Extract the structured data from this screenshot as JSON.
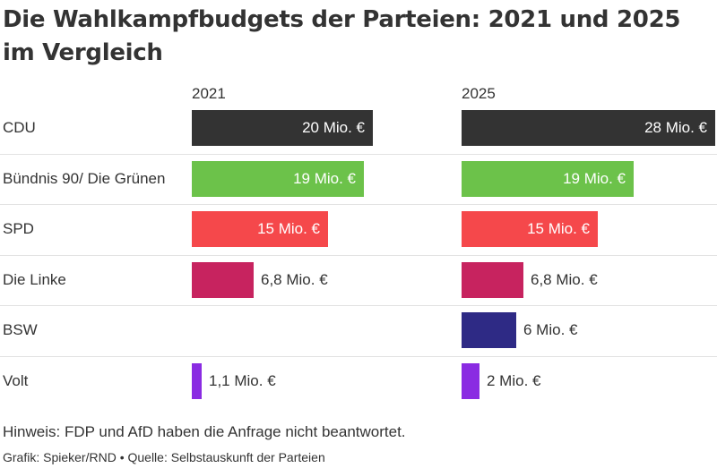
{
  "header": {
    "title": "Die Wahlkampfbudgets der Parteien: 2021 und 2025 im Vergleich"
  },
  "footer": {
    "note": "Hinweis: FDP und AfD haben die Anfrage nicht beantwortet.",
    "source": "Grafik: Spieker/RND • Quelle: Selbstauskunft der Parteien"
  },
  "chart_data": {
    "type": "bar",
    "orientation": "horizontal",
    "unit": "Mio. €",
    "title": "Die Wahlkampfbudgets der Parteien: 2021 und 2025 im Vergleich",
    "categories": [
      "CDU",
      "Bündnis 90/ Die Grünen",
      "SPD",
      "Die Linke",
      "BSW",
      "Volt"
    ],
    "colors": [
      "#333333",
      "#6cc24a",
      "#f5484b",
      "#c7235f",
      "#2e2a85",
      "#8a2be2"
    ],
    "series": [
      {
        "name": "2021",
        "values": [
          20,
          19,
          15,
          6.8,
          null,
          1.1
        ],
        "labels": [
          "20 Mio. €",
          "19 Mio. €",
          "15 Mio. €",
          "6,8 Mio. €",
          "",
          "1,1 Mio. €"
        ]
      },
      {
        "name": "2025",
        "values": [
          28,
          19,
          15,
          6.8,
          6,
          2
        ],
        "labels": [
          "28 Mio. €",
          "19 Mio. €",
          "15 Mio. €",
          "6,8 Mio. €",
          "6 Mio. €",
          "2 Mio. €"
        ]
      }
    ],
    "xlim": [
      0,
      28
    ],
    "grid": false,
    "legend": "none"
  }
}
